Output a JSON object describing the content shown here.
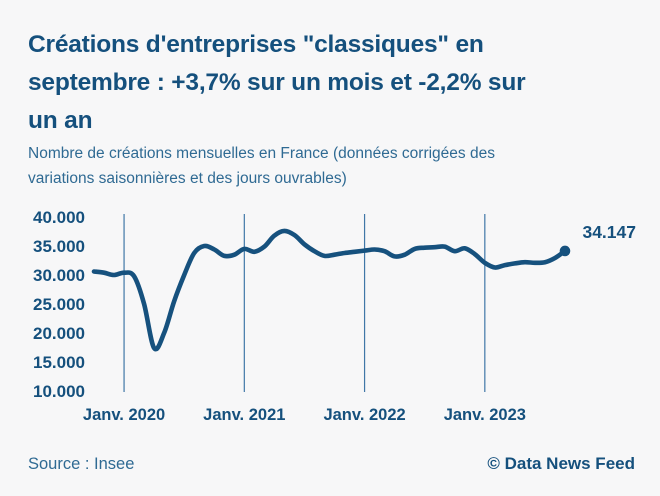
{
  "title": {
    "lines": [
      "Créations d'entreprises \"classiques\" en",
      "septembre : +3,7% sur un mois et -2,2% sur",
      "un an"
    ]
  },
  "subtitle": {
    "lines": [
      "Nombre de créations mensuelles en France (données corrigées des",
      "variations saisonnières et des jours ouvrables)"
    ]
  },
  "footer": {
    "source": "Source : Insee",
    "credit": "© Data News Feed"
  },
  "colors": {
    "background": "#f7f7f8",
    "title": "#15507d",
    "subtitle": "#2f6a93",
    "line": "#16517e",
    "grid": "#4077a7",
    "axis_labels": "#15507d",
    "end_label": "#15507d"
  },
  "chart_data": {
    "type": "line",
    "title": "Nombre de créations mensuelles en France (CVS-CJO)",
    "xlabel": "",
    "ylabel": "",
    "ylim": [
      10000,
      40000
    ],
    "grid": "vertical-only",
    "legend": "none",
    "x": [
      "2019-10",
      "2019-11",
      "2019-12",
      "2020-01",
      "2020-02",
      "2020-03",
      "2020-04",
      "2020-05",
      "2020-06",
      "2020-07",
      "2020-08",
      "2020-09",
      "2020-10",
      "2020-11",
      "2020-12",
      "2021-01",
      "2021-02",
      "2021-03",
      "2021-04",
      "2021-05",
      "2021-06",
      "2021-07",
      "2021-08",
      "2021-09",
      "2021-10",
      "2021-11",
      "2021-12",
      "2022-01",
      "2022-02",
      "2022-03",
      "2022-04",
      "2022-05",
      "2022-06",
      "2022-07",
      "2022-08",
      "2022-09",
      "2022-10",
      "2022-11",
      "2022-12",
      "2023-01",
      "2023-02",
      "2023-03",
      "2023-04",
      "2023-05",
      "2023-06",
      "2023-07",
      "2023-08",
      "2023-09"
    ],
    "series": [
      {
        "name": "Créations d'entreprises classiques",
        "values": [
          30600,
          30400,
          30000,
          30400,
          29800,
          25000,
          17400,
          20000,
          25500,
          30000,
          33800,
          35000,
          34400,
          33300,
          33500,
          34500,
          34000,
          34900,
          36800,
          37600,
          36900,
          35300,
          34100,
          33300,
          33500,
          33800,
          34000,
          34200,
          34400,
          34100,
          33200,
          33500,
          34500,
          34700,
          34800,
          34900,
          34100,
          34600,
          33600,
          32100,
          31300,
          31700,
          32000,
          32200,
          32100,
          32200,
          32930,
          34147
        ]
      }
    ],
    "yticks": [
      {
        "label": "40.000",
        "value": 40000
      },
      {
        "label": "35.000",
        "value": 35000
      },
      {
        "label": "30.000",
        "value": 30000
      },
      {
        "label": "25.000",
        "value": 25000
      },
      {
        "label": "20.000",
        "value": 20000
      },
      {
        "label": "15.000",
        "value": 15000
      },
      {
        "label": "10.000",
        "value": 10000
      }
    ],
    "xticks": [
      {
        "label": "Janv. 2020",
        "index": 3
      },
      {
        "label": "Janv. 2021",
        "index": 15
      },
      {
        "label": "Janv. 2022",
        "index": 27
      },
      {
        "label": "Janv. 2023",
        "index": 39
      }
    ],
    "end_annotation": {
      "label": "34.147",
      "value": 34147
    }
  }
}
